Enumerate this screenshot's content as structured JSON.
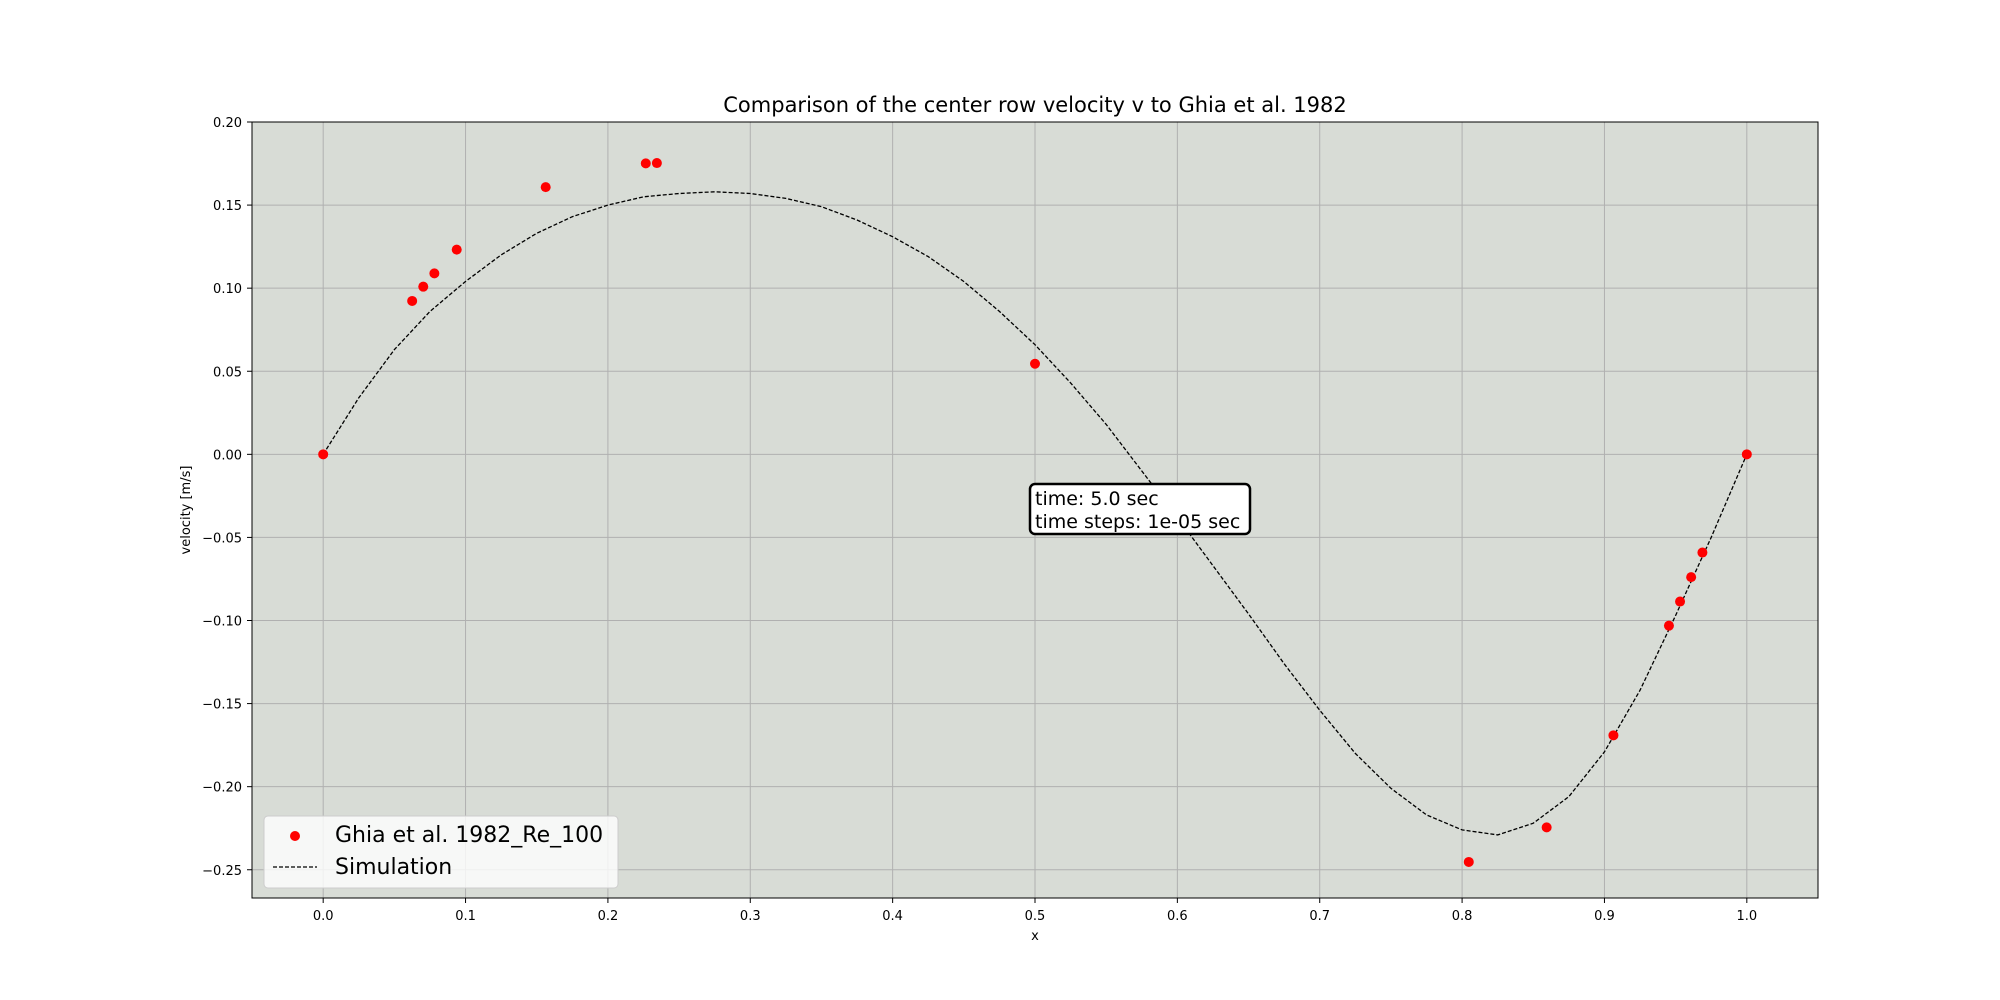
{
  "chart_data": {
    "type": "scatter",
    "title": "Comparison of the center row velocity v to Ghia et al. 1982",
    "xlabel": "x",
    "ylabel": "velocity [m/s]",
    "xlim": [
      -0.05,
      1.05
    ],
    "ylim": [
      -0.267,
      0.2
    ],
    "grid": true,
    "legend_position": "lower-left",
    "background_color": "#d8dcd6",
    "x_ticks": [
      "0.0",
      "0.1",
      "0.2",
      "0.3",
      "0.4",
      "0.5",
      "0.6",
      "0.7",
      "0.8",
      "0.9",
      "1.0"
    ],
    "y_ticks": [
      "0.20",
      "0.15",
      "0.10",
      "0.05",
      "0.00",
      "−0.05",
      "−0.10",
      "−0.15",
      "−0.20",
      "−0.25"
    ],
    "annotation": {
      "line1": "time: 5.0 sec",
      "line2": "time steps: 1e-05 sec"
    },
    "series": [
      {
        "name": "Ghia et al. 1982_Re_100",
        "kind": "scatter",
        "color": "#ff0000",
        "x": [
          0.0,
          0.0625,
          0.0703,
          0.0781,
          0.0938,
          0.1563,
          0.2266,
          0.2344,
          0.5,
          0.8047,
          0.8594,
          0.9063,
          0.9453,
          0.9531,
          0.9609,
          0.9688,
          1.0
        ],
        "y": [
          0.0,
          0.0923,
          0.1009,
          0.1089,
          0.1232,
          0.1608,
          0.1751,
          0.1753,
          0.0545,
          -0.2453,
          -0.2245,
          -0.1691,
          -0.1031,
          -0.0886,
          -0.0739,
          -0.0591,
          0.0
        ]
      },
      {
        "name": "Simulation",
        "kind": "line",
        "style": "dashed",
        "color": "#000000",
        "x": [
          0.0,
          0.025,
          0.05,
          0.075,
          0.1,
          0.125,
          0.15,
          0.175,
          0.2,
          0.225,
          0.25,
          0.275,
          0.3,
          0.325,
          0.35,
          0.375,
          0.4,
          0.425,
          0.45,
          0.475,
          0.5,
          0.525,
          0.55,
          0.575,
          0.6,
          0.625,
          0.65,
          0.675,
          0.7,
          0.725,
          0.75,
          0.775,
          0.8,
          0.825,
          0.85,
          0.875,
          0.9,
          0.925,
          0.95,
          0.975,
          1.0
        ],
        "y": [
          0.0,
          0.034,
          0.063,
          0.086,
          0.104,
          0.12,
          0.133,
          0.143,
          0.15,
          0.155,
          0.157,
          0.158,
          0.157,
          0.154,
          0.149,
          0.141,
          0.131,
          0.119,
          0.104,
          0.086,
          0.066,
          0.043,
          0.018,
          -0.01,
          -0.038,
          -0.067,
          -0.096,
          -0.126,
          -0.154,
          -0.18,
          -0.201,
          -0.217,
          -0.226,
          -0.229,
          -0.222,
          -0.206,
          -0.179,
          -0.142,
          -0.097,
          -0.05,
          0.0
        ]
      }
    ]
  }
}
